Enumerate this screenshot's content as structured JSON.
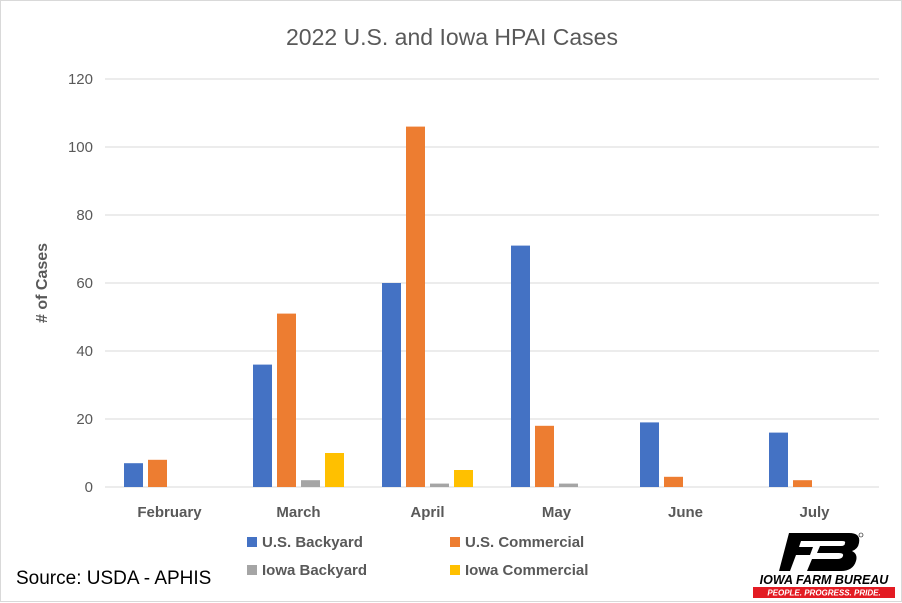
{
  "chart_data": {
    "type": "bar",
    "title": "2022 U.S. and Iowa HPAI Cases",
    "xlabel": "",
    "ylabel": "# of Cases",
    "ylim": [
      0,
      120
    ],
    "yticks": [
      0,
      20,
      40,
      60,
      80,
      100,
      120
    ],
    "grid": true,
    "legend_position": "bottom",
    "categories": [
      "February",
      "March",
      "April",
      "May",
      "June",
      "July"
    ],
    "series": [
      {
        "name": "U.S. Backyard",
        "color": "#4472C4",
        "values": [
          7,
          36,
          60,
          71,
          19,
          16
        ]
      },
      {
        "name": "U.S. Commercial",
        "color": "#ED7D31",
        "values": [
          8,
          51,
          106,
          18,
          3,
          2
        ]
      },
      {
        "name": "Iowa Backyard",
        "color": "#A5A5A5",
        "values": [
          0,
          2,
          1,
          1,
          0,
          0
        ]
      },
      {
        "name": "Iowa Commercial",
        "color": "#FFC000",
        "values": [
          0,
          10,
          5,
          0,
          0,
          0
        ]
      }
    ]
  },
  "source": "Source: USDA - APHIS",
  "logo": {
    "icon": "farm-bureau-fb-logo-icon",
    "name": "IOWA FARM BUREAU",
    "tagline": "PEOPLE. PROGRESS. PRIDE.",
    "primary_color": "#000000",
    "accent_color": "#E31B23"
  }
}
